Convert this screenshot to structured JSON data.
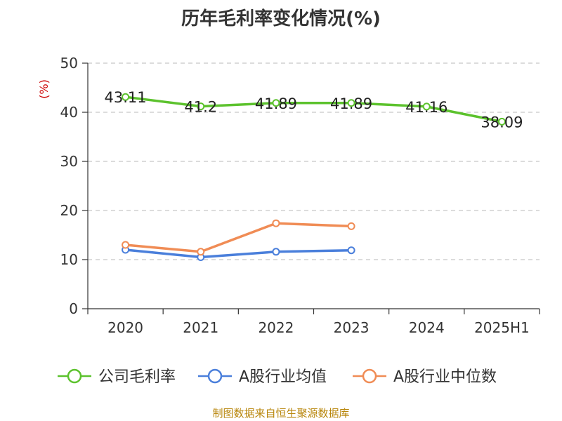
{
  "title": "历年毛利率变化情况(%)",
  "source_note": "制图数据来自恒生聚源数据库",
  "chart_data": {
    "type": "line",
    "title": "历年毛利率变化情况(%)",
    "ylabel": "(%)",
    "xlabel": "",
    "ylim": [
      0,
      50
    ],
    "yticks": [
      0,
      10,
      20,
      30,
      40,
      50
    ],
    "grid": true,
    "legend_position": "bottom",
    "categories": [
      "2020",
      "2021",
      "2022",
      "2023",
      "2024",
      "2025H1"
    ],
    "series": [
      {
        "name": "公司毛利率",
        "color": "#5cc22d",
        "show_labels": true,
        "values": [
          43.11,
          41.2,
          41.89,
          41.89,
          41.16,
          38.09
        ]
      },
      {
        "name": "A股行业均值",
        "color": "#4a7fdb",
        "show_labels": false,
        "values": [
          12.0,
          10.5,
          11.6,
          11.9,
          null,
          null
        ]
      },
      {
        "name": "A股行业中位数",
        "color": "#f08c55",
        "show_labels": false,
        "values": [
          13.0,
          11.6,
          17.4,
          16.8,
          null,
          null
        ]
      }
    ]
  }
}
